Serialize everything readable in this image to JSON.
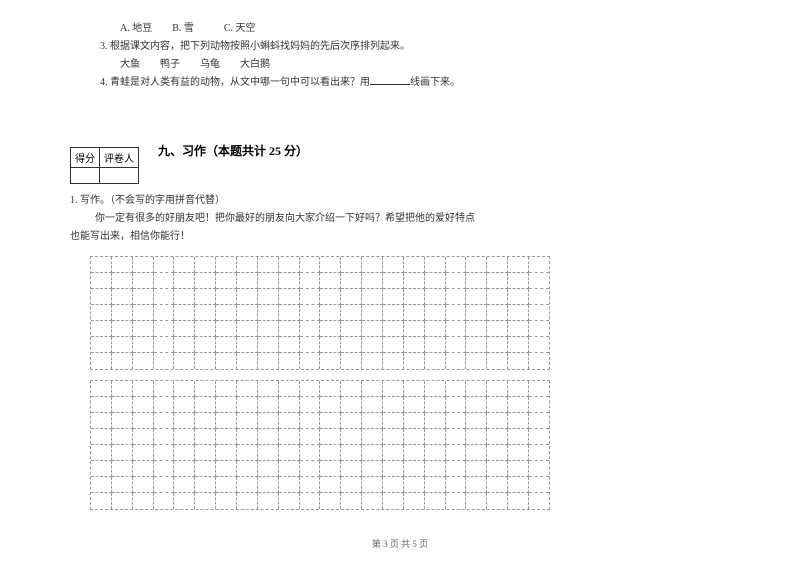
{
  "questions": {
    "options": "A. 地豆　　B. 雪　　　C. 天空",
    "q3": "3. 根据课文内容，把下列动物按照小蝌蚪找妈妈的先后次序排列起来。",
    "q3_items": "大鱼　　鸭子　　乌龟　　大白鹅",
    "q4_prefix": "4. 青蛙是对人类有益的动物，从文中哪一句中可以看出来？用",
    "q4_suffix": "线画下来。"
  },
  "scoreBox": {
    "col1": "得分",
    "col2": "评卷人"
  },
  "section": {
    "title": "九、习作（本题共计 25 分）"
  },
  "writing": {
    "line1": "1. 写作。（不会写的字用拼音代替）",
    "line2": "你一定有很多的好朋友吧！把你最好的朋友向大家介绍一下好吗？希望把他的爱好特点",
    "line3": "也能写出来，相信你能行！"
  },
  "grid": {
    "block1_rows": 7,
    "block2_rows": 8,
    "cols": 22
  },
  "footer": {
    "text": "第 3 页 共 5 页"
  },
  "style": {
    "text_color": "#333333",
    "grid_color": "#999999",
    "background": "#ffffff"
  }
}
